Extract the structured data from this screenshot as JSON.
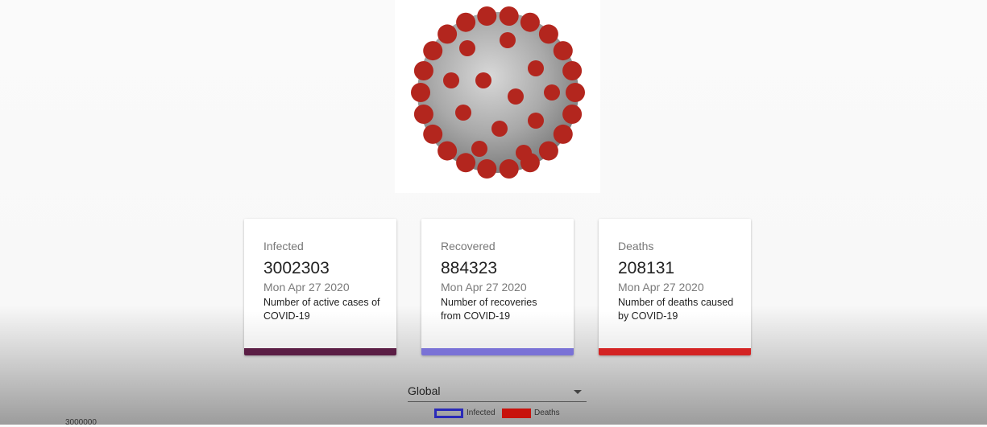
{
  "hero": {
    "icon": "coronavirus-image"
  },
  "cards": [
    {
      "label": "Infected",
      "value": "3002303",
      "date": "Mon Apr 27 2020",
      "description": "Number of active cases of COVID-19",
      "bar_color": "#5b1e45"
    },
    {
      "label": "Recovered",
      "value": "884323",
      "date": "Mon Apr 27 2020",
      "description": "Number of recoveries from COVID-19",
      "bar_color": "#7a72d6"
    },
    {
      "label": "Deaths",
      "value": "208131",
      "date": "Mon Apr 27 2020",
      "description": "Number of deaths caused by COVID-19",
      "bar_color": "#d42424"
    }
  ],
  "country_select": {
    "value": "Global"
  },
  "chart_data": {
    "type": "line",
    "series": [
      {
        "name": "Infected",
        "color": "#2a2ab8",
        "values": []
      },
      {
        "name": "Deaths",
        "color": "#c8120c",
        "values": []
      }
    ],
    "yticks": [
      "3000000"
    ],
    "legend": "top"
  }
}
